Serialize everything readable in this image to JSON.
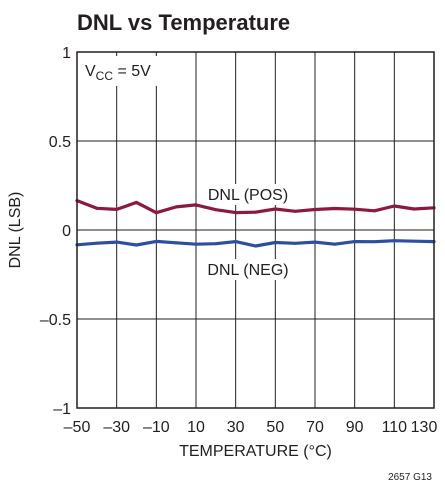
{
  "chart_data": {
    "type": "line",
    "title": "DNL vs Temperature",
    "xlabel": "TEMPERATURE (°C)",
    "ylabel": "DNL (LSB)",
    "xlim": [
      -50,
      130
    ],
    "ylim": [
      -1,
      1
    ],
    "x_ticks": [
      -50,
      -30,
      -10,
      10,
      30,
      50,
      70,
      90,
      110,
      130
    ],
    "x_tick_labels": [
      "–50",
      "–30",
      "–10",
      "10",
      "30",
      "50",
      "70",
      "90",
      "110",
      "130"
    ],
    "y_ticks": [
      1,
      0.5,
      0,
      -0.5,
      -1
    ],
    "y_tick_labels": [
      "1",
      "0.5",
      "0",
      "–0.5",
      "–1"
    ],
    "grid": true,
    "condition": {
      "main": "V",
      "sub": "CC",
      "rest": " = 5V"
    },
    "series": [
      {
        "name": "DNL (POS)",
        "color": "#8b1a3c",
        "x": [
          -50,
          -40,
          -30,
          -20,
          -10,
          0,
          10,
          20,
          30,
          40,
          50,
          60,
          70,
          80,
          90,
          100,
          110,
          120,
          130
        ],
        "y": [
          0.165,
          0.122,
          0.116,
          0.155,
          0.097,
          0.13,
          0.141,
          0.114,
          0.098,
          0.1,
          0.118,
          0.105,
          0.115,
          0.121,
          0.117,
          0.108,
          0.135,
          0.118,
          0.125
        ]
      },
      {
        "name": "DNL (NEG)",
        "color": "#2e4fa0",
        "x": [
          -50,
          -40,
          -30,
          -20,
          -10,
          0,
          10,
          20,
          30,
          40,
          50,
          60,
          70,
          80,
          90,
          100,
          110,
          120,
          130
        ],
        "y": [
          -0.083,
          -0.074,
          -0.068,
          -0.084,
          -0.064,
          -0.072,
          -0.08,
          -0.077,
          -0.065,
          -0.09,
          -0.07,
          -0.075,
          -0.068,
          -0.08,
          -0.065,
          -0.066,
          -0.06,
          -0.063,
          -0.065
        ]
      }
    ],
    "footer": "2657 G13"
  }
}
